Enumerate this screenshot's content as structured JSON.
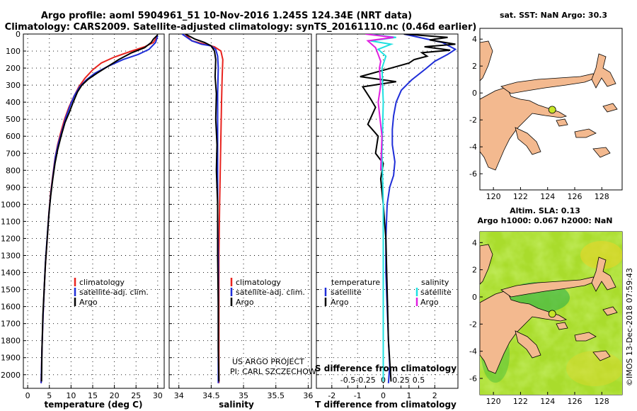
{
  "title_line1": "Argo profile: aoml 5904961_51 10-Nov-2016 1.245S 124.34E (NRT data)",
  "title_line2": "Climatology: CARS2009. Satellite-adjusted climatology: synTS_20161110.nc (0.46d earlier)",
  "credit_line1": "US ARGO PROJECT",
  "credit_line2": "PI: CARL SZCZECHOWSKI",
  "imos_stamp": "©IMOS 13-Dec-2018 07:59:43",
  "colors": {
    "climatology": "#e8231e",
    "satellite": "#1f2ed8",
    "argo": "#000000",
    "sal_sat": "#1ee0e0",
    "sal_argo": "#e020e0",
    "land": "#f3b98f",
    "float_marker": "#c8e629"
  },
  "chart_data": [
    {
      "type": "line",
      "name": "temperature-profile",
      "xlabel": "temperature (deg C)",
      "ylabel": "",
      "xlim": [
        -1,
        31.5
      ],
      "ylim": [
        2080,
        0
      ],
      "xticks": [
        0,
        5,
        10,
        15,
        20,
        25,
        30
      ],
      "yticks": [
        0,
        100,
        200,
        300,
        400,
        500,
        600,
        700,
        800,
        900,
        1000,
        1100,
        1200,
        1300,
        1400,
        1500,
        1600,
        1700,
        1800,
        1900,
        2000
      ],
      "legend": [
        "climatology",
        "satellite-adj. clim.",
        "Argo"
      ],
      "series": [
        {
          "name": "climatology",
          "color_key": "climatology",
          "x": [
            30,
            29,
            27,
            24,
            20,
            17,
            15,
            13.2,
            11.8,
            10.6,
            9.5,
            8.5,
            7.6,
            6.9,
            6.3,
            5.8,
            5.3,
            4.9,
            4.5,
            4.1,
            3.8,
            3.55,
            3.3,
            3.1
          ],
          "y": [
            10,
            50,
            75,
            100,
            135,
            170,
            210,
            260,
            310,
            370,
            430,
            500,
            580,
            650,
            730,
            830,
            930,
            1050,
            1200,
            1350,
            1500,
            1650,
            1850,
            2050
          ]
        },
        {
          "name": "satellite-adj. clim.",
          "color_key": "satellite",
          "x": [
            30,
            29.5,
            28,
            25.5,
            22,
            18.5,
            15.5,
            13.5,
            12,
            10.8,
            9.8,
            8.8,
            7.9,
            7.1,
            6.4,
            5.9,
            5.4,
            4.95,
            4.5,
            4.1,
            3.8,
            3.55,
            3.3,
            3.1
          ],
          "y": [
            10,
            50,
            90,
            120,
            150,
            190,
            230,
            270,
            310,
            360,
            420,
            490,
            570,
            640,
            720,
            820,
            920,
            1040,
            1190,
            1340,
            1500,
            1650,
            1850,
            2050
          ]
        },
        {
          "name": "Argo",
          "color_key": "argo",
          "x": [
            30,
            29,
            28.5,
            27,
            24,
            21,
            18.5,
            16,
            14,
            12.5,
            11.5,
            10.5,
            9.6,
            8.6,
            7.7,
            6.9,
            6.3,
            5.8,
            5.3,
            4.9,
            4.5,
            4.1,
            3.8,
            3.5,
            3.3,
            3.2
          ],
          "y": [
            5,
            30,
            50,
            80,
            110,
            150,
            190,
            230,
            265,
            300,
            340,
            400,
            460,
            520,
            600,
            680,
            760,
            850,
            950,
            1060,
            1200,
            1350,
            1500,
            1650,
            1850,
            2040
          ]
        }
      ]
    },
    {
      "type": "line",
      "name": "salinity-profile",
      "xlabel": "salinity",
      "ylabel": "",
      "xlim": [
        33.85,
        36.05
      ],
      "ylim": [
        2080,
        0
      ],
      "xticks": [
        34,
        34.5,
        35,
        35.5,
        36
      ],
      "legend": [
        "climatology",
        "satellite-adj. clim.",
        "Argo"
      ],
      "series": [
        {
          "name": "climatology",
          "color_key": "climatology",
          "x": [
            34.1,
            34.2,
            34.4,
            34.55,
            34.65,
            34.68,
            34.67,
            34.66,
            34.65,
            34.64,
            34.63,
            34.62,
            34.62,
            34.62,
            34.62
          ],
          "y": [
            0,
            40,
            60,
            75,
            100,
            150,
            250,
            400,
            600,
            800,
            1000,
            1300,
            1600,
            1900,
            2050
          ]
        },
        {
          "name": "satellite-adj. clim.",
          "color_key": "satellite",
          "x": [
            34.05,
            34.2,
            34.35,
            34.5,
            34.57,
            34.6,
            34.61,
            34.6,
            34.6,
            34.6,
            34.6,
            34.61,
            34.61,
            34.61,
            34.61
          ],
          "y": [
            0,
            40,
            60,
            70,
            90,
            130,
            200,
            350,
            550,
            800,
            1050,
            1350,
            1650,
            1900,
            2050
          ]
        },
        {
          "name": "Argo",
          "color_key": "argo",
          "x": [
            34.1,
            34.25,
            34.4,
            34.5,
            34.55,
            34.57,
            34.56,
            34.58,
            34.57,
            34.59,
            34.58,
            34.6,
            34.6,
            34.61,
            34.61,
            34.62
          ],
          "y": [
            0,
            30,
            50,
            70,
            100,
            150,
            250,
            350,
            500,
            650,
            800,
            1000,
            1300,
            1600,
            1850,
            2040
          ]
        }
      ]
    },
    {
      "type": "line",
      "name": "difference-profile",
      "xlabel": "T difference from climatology",
      "title_inset": "S difference from climatology",
      "xlim": [
        -2.6,
        2.9
      ],
      "ylim": [
        2080,
        0
      ],
      "xticks": [
        -2,
        -1,
        0,
        1,
        2
      ],
      "top_ticks": [
        -0.5,
        -0.25,
        0,
        0.25,
        0.5
      ],
      "top_tick_labels": [
        "-0.5",
        "-0.25",
        "0",
        "0.25",
        "0.5"
      ],
      "legend_left_header": "temperature",
      "legend_right_header": "salinity",
      "legend": [
        "satellite",
        "Argo",
        "satellite",
        "Argo"
      ],
      "series": [
        {
          "name": "T satellite",
          "color_key": "satellite",
          "x": [
            0.8,
            2.3,
            2.8,
            2.5,
            2.0,
            1.6,
            1.1,
            0.7,
            0.5,
            0.4,
            0.35,
            0.35,
            0.45,
            0.4,
            0.25,
            0.15,
            0.1,
            0.1,
            0.15,
            0.2,
            0.25,
            0.2
          ],
          "y": [
            0,
            50,
            90,
            120,
            160,
            210,
            270,
            330,
            400,
            480,
            560,
            650,
            750,
            830,
            900,
            1000,
            1200,
            1400,
            1600,
            1800,
            1950,
            2050
          ]
        },
        {
          "name": "T Argo",
          "color_key": "argo",
          "x": [
            0.8,
            2.5,
            1.8,
            2.8,
            1.6,
            2.6,
            1.5,
            1.7,
            1.2,
            1.0,
            0.3,
            -0.9,
            0.5,
            -0.8,
            -0.5,
            -0.3,
            -0.6,
            -0.2,
            -0.3,
            0.0,
            -0.1,
            0.0,
            0.1,
            0.15,
            0.2,
            0.3
          ],
          "y": [
            0,
            20,
            35,
            60,
            75,
            95,
            110,
            130,
            150,
            170,
            200,
            250,
            280,
            310,
            380,
            430,
            530,
            600,
            700,
            760,
            850,
            1000,
            1200,
            1500,
            1800,
            2040
          ]
        },
        {
          "name": "S satellite",
          "color_key": "sal_sat",
          "x": [
            -0.6,
            0.5,
            -0.5,
            0.3,
            -0.2,
            0.1,
            -0.05,
            0.0,
            -0.05,
            0.0,
            0.0,
            0.0,
            0.0
          ],
          "y": [
            0,
            20,
            40,
            60,
            90,
            130,
            200,
            400,
            700,
            1000,
            1400,
            1800,
            2040
          ]
        },
        {
          "name": "S Argo",
          "color_key": "sal_argo",
          "x": [
            -0.7,
            0.4,
            -0.6,
            -0.3,
            -0.2,
            -0.1,
            -0.15,
            -0.1,
            -0.2,
            -0.05,
            -0.1
          ],
          "y": [
            0,
            20,
            40,
            80,
            120,
            160,
            200,
            300,
            400,
            600,
            800
          ]
        }
      ]
    },
    {
      "type": "map",
      "name": "sst-map",
      "title": "sat. SST: NaN Argo: 30.3",
      "xlim": [
        119,
        129.5
      ],
      "ylim": [
        -7.2,
        4.8
      ],
      "xticks": [
        120,
        122,
        124,
        126,
        128
      ],
      "yticks": [
        4,
        2,
        0,
        -2,
        -4,
        -6
      ],
      "float_position": {
        "lon": 124.34,
        "lat": -1.245
      }
    },
    {
      "type": "map",
      "name": "sla-map",
      "title_line1": "Altim. SLA: 0.13",
      "title_line2": "Argo h1000: 0.067 h2000: NaN",
      "xlim": [
        119,
        129.5
      ],
      "ylim": [
        -7.2,
        4.8
      ],
      "xticks": [
        120,
        122,
        124,
        126,
        128
      ],
      "yticks": [
        4,
        2,
        0,
        -2,
        -4,
        -6
      ],
      "float_position": {
        "lon": 124.34,
        "lat": -1.245
      }
    }
  ]
}
